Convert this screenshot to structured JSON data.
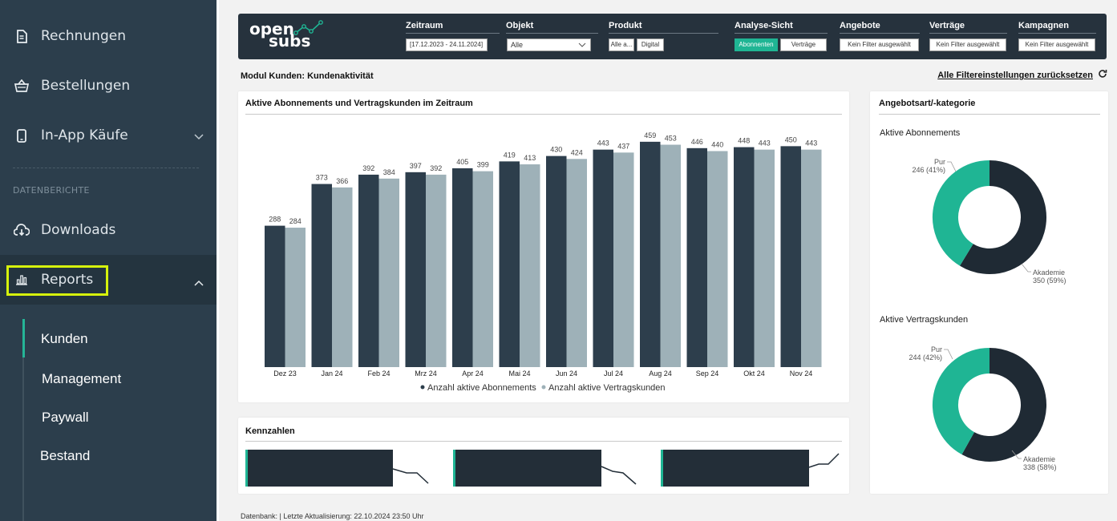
{
  "sidebar": {
    "items": [
      {
        "label": "Rechnungen",
        "icon": "invoice-icon"
      },
      {
        "label": "Bestellungen",
        "icon": "basket-icon"
      },
      {
        "label": "In-App Käufe",
        "icon": "phone-icon"
      }
    ],
    "section_label": "DATENBERICHTE",
    "downloads_label": "Downloads",
    "reports_label": "Reports",
    "sub_items": [
      "Kunden",
      "Management",
      "Paywall",
      "Bestand"
    ]
  },
  "filters": {
    "logo_line1": "open",
    "logo_line2": "subs",
    "zeitraum_label": "Zeitraum",
    "zeitraum_value": "[17.12.2023 - 24.11.2024]",
    "objekt_label": "Objekt",
    "objekt_value": "Alle",
    "produkt_label": "Produkt",
    "produkt_value1": "Alle a...",
    "produkt_value2": "Digital",
    "analyse_label": "Analyse-Sicht",
    "analyse_opt1": "Abonnenten",
    "analyse_opt2": "Verträge",
    "angebote_label": "Angebote",
    "angebote_value": "Kein Filter ausgewählt",
    "vertraege_label": "Verträge",
    "vertraege_value": "Kein Filter ausgewählt",
    "kampagnen_label": "Kampagnen",
    "kampagnen_value": "Kein Filter ausgewählt"
  },
  "module_title": "Modul Kunden: Kundenaktivität",
  "reset_label": "Alle Filtereinstellungen zurücksetzen",
  "chart_card_title": "Aktive Abonnements und Vertragskunden im Zeitraum",
  "kpi_card_title": "Kennzahlen",
  "donut_card_title": "Angebotsart/-kategorie",
  "footer_text": "Datenbank: | Letzte Aktualisierung: 22.10.2024 23:50 Uhr",
  "colors": {
    "dark": "#2d3e4c",
    "light": "#9eb1b8",
    "accent": "#1fb594",
    "highlight": "#d6f20c"
  },
  "chart_data": [
    {
      "type": "bar",
      "title": "Aktive Abonnements und Vertragskunden im Zeitraum",
      "categories": [
        "Dez 23",
        "Jan 24",
        "Feb 24",
        "Mrz 24",
        "Apr 24",
        "Mai 24",
        "Jun 24",
        "Jul 24",
        "Aug 24",
        "Sep 24",
        "Okt 24",
        "Nov 24"
      ],
      "series": [
        {
          "name": "Anzahl aktive Abonnements",
          "values": [
            288,
            373,
            392,
            397,
            405,
            419,
            430,
            443,
            459,
            446,
            448,
            450
          ]
        },
        {
          "name": "Anzahl aktive Vertragskunden",
          "values": [
            284,
            366,
            384,
            392,
            399,
            413,
            424,
            437,
            453,
            440,
            443,
            443
          ]
        }
      ],
      "ylim": [
        0,
        480
      ],
      "legend": "bottom"
    },
    {
      "type": "pie",
      "title": "Aktive Abonnements",
      "slices": [
        {
          "name": "Akademie",
          "value": 350,
          "label": "Akademie",
          "value_label": "350 (59%)"
        },
        {
          "name": "Pur",
          "value": 246,
          "label": "Pur",
          "value_label": "246 (41%)"
        }
      ]
    },
    {
      "type": "pie",
      "title": "Aktive Vertragskunden",
      "slices": [
        {
          "name": "Akademie",
          "value": 338,
          "label": "Akademie",
          "value_label": "338 (58%)"
        },
        {
          "name": "Pur",
          "value": 244,
          "label": "Pur",
          "value_label": "244 (42%)"
        }
      ]
    }
  ]
}
